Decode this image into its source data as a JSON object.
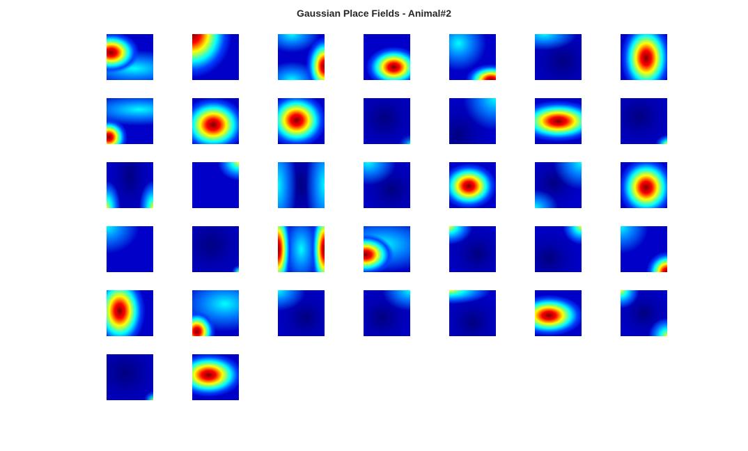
{
  "chart_data": {
    "type": "heatmap-grid",
    "title": "Gaussian Place Fields - Animal#2"
  }
}
